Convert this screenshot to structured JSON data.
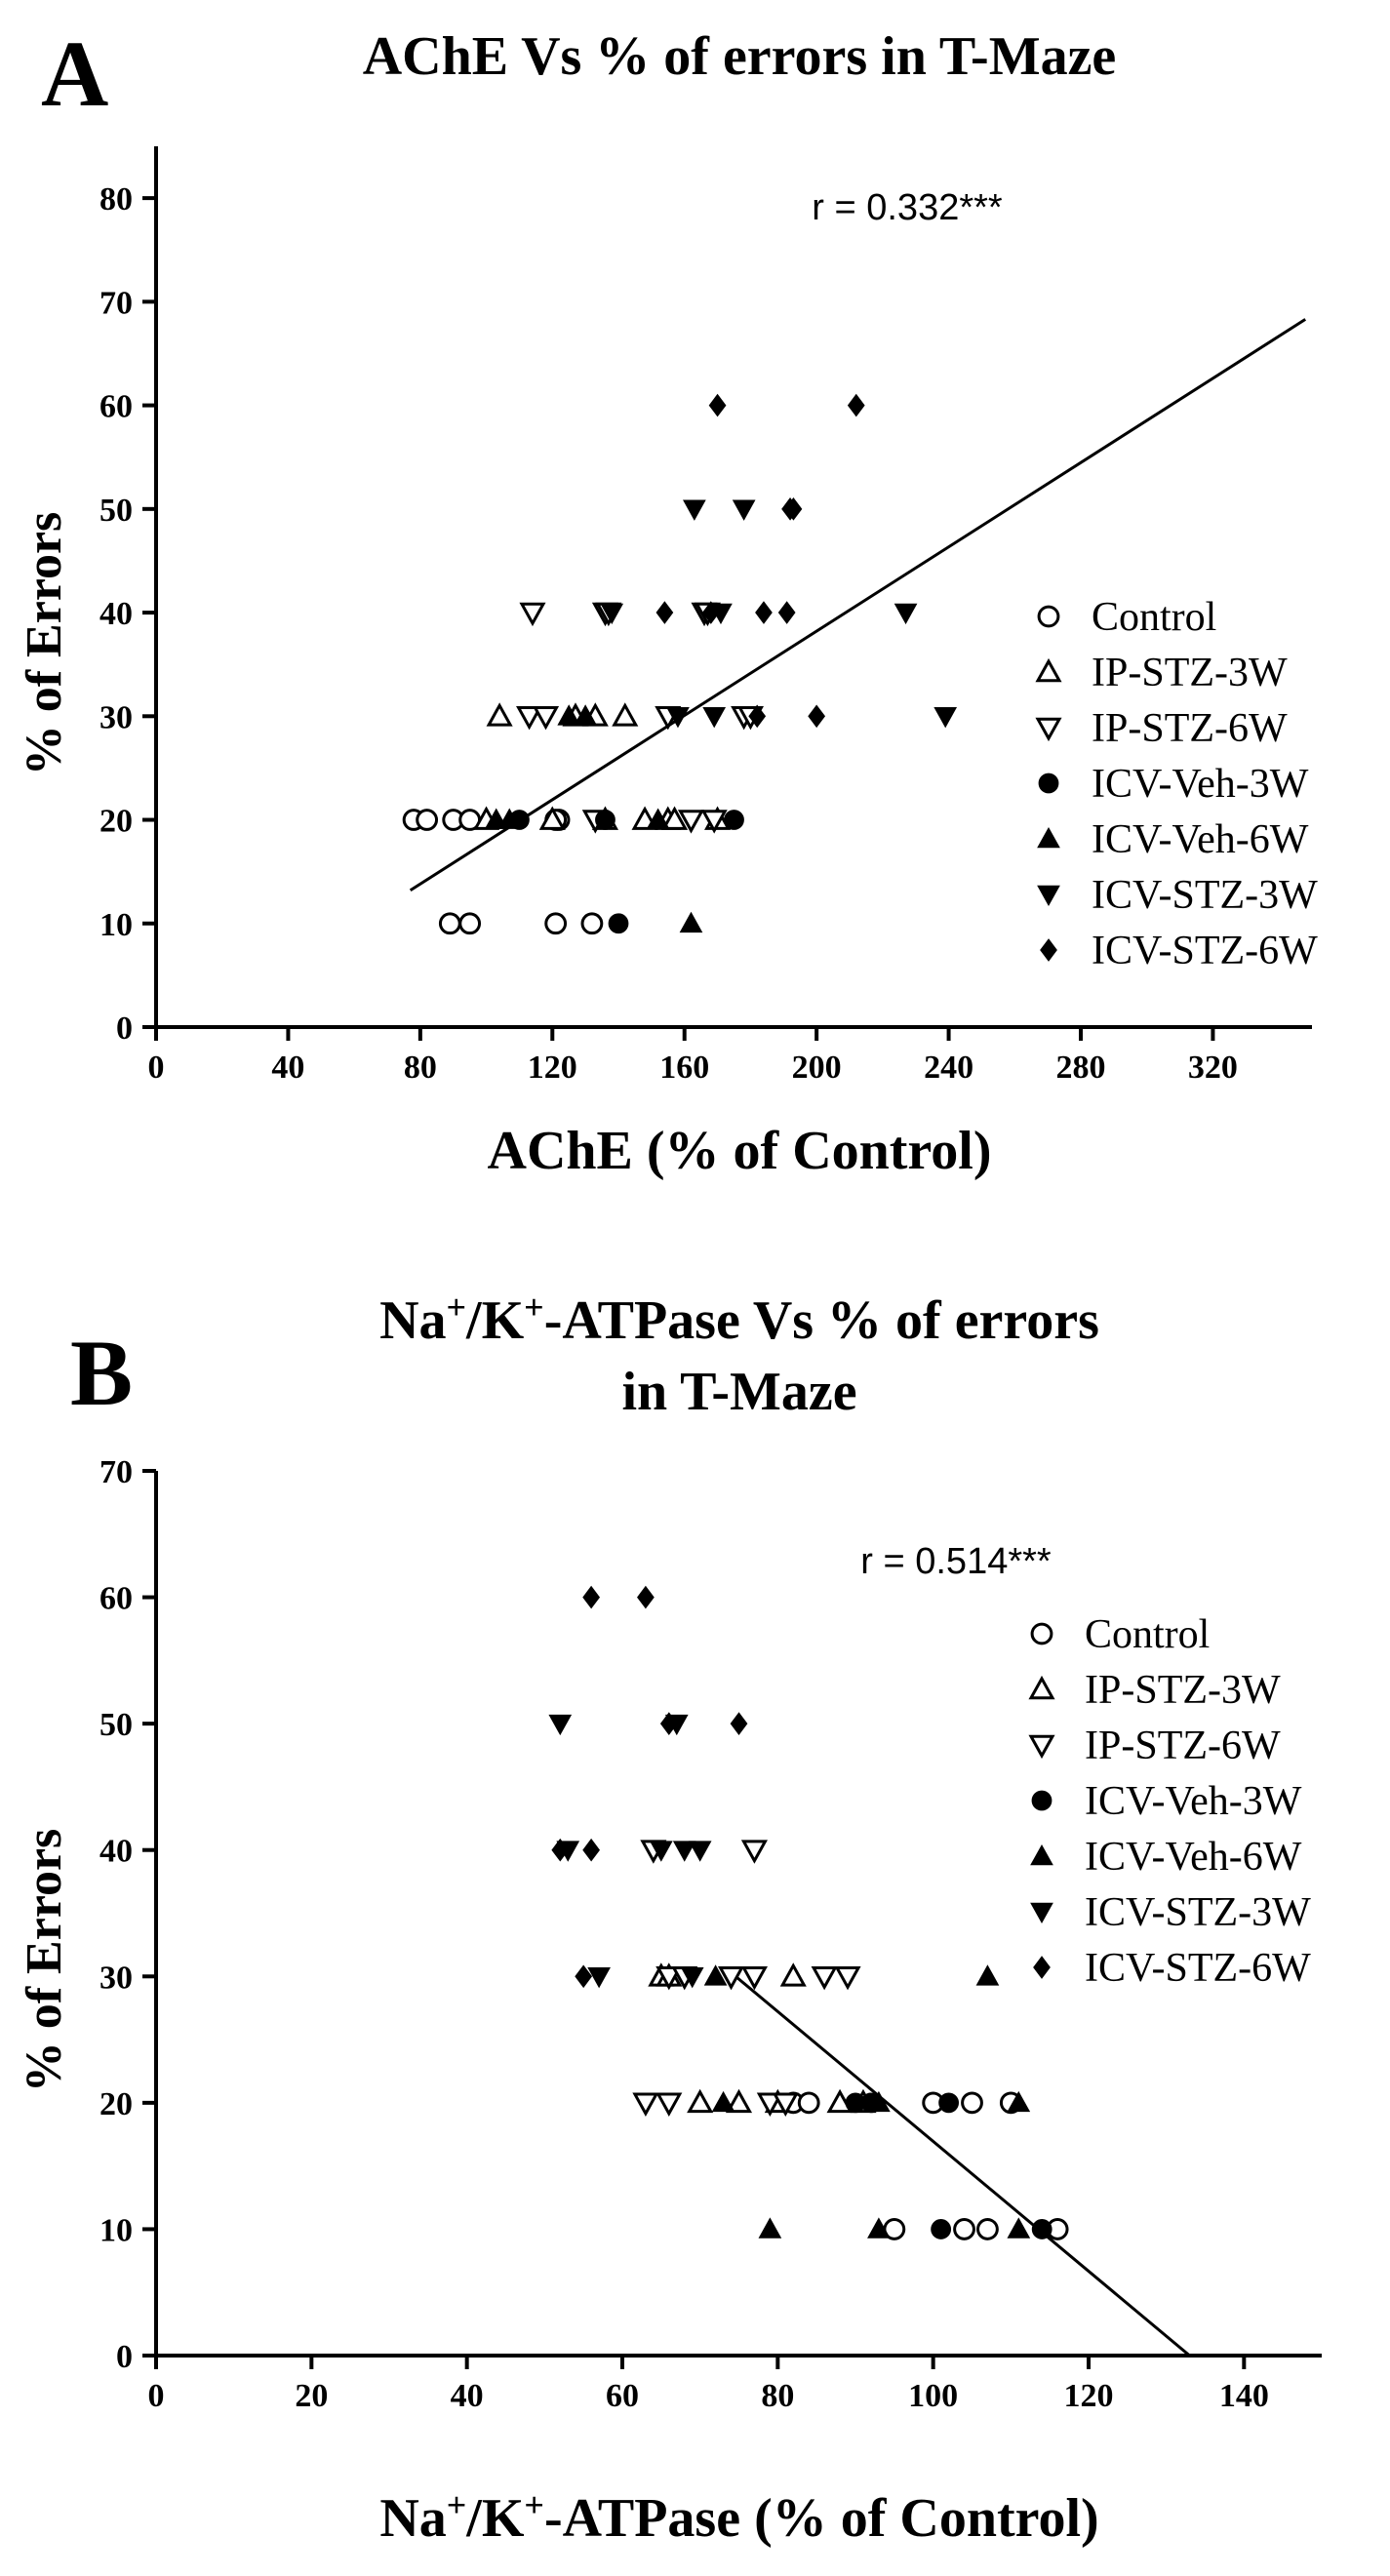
{
  "chart_data": [
    {
      "panel": "A",
      "type": "scatter",
      "title": "AChE Vs % of errors in T-Maze",
      "xlabel": "AChE (% of Control)",
      "ylabel": "% of Errors",
      "xlim": [
        0,
        350
      ],
      "ylim": [
        0,
        85
      ],
      "xticks": [
        0,
        40,
        80,
        120,
        160,
        200,
        240,
        280,
        320
      ],
      "yticks": [
        0,
        10,
        20,
        30,
        40,
        50,
        60,
        70,
        80
      ],
      "annotation": "r = 0.332***",
      "trendline": [
        [
          77,
          13.2
        ],
        [
          348,
          68.3
        ]
      ],
      "legend_position": "right",
      "series": [
        {
          "name": "Control",
          "marker": "open-circle",
          "points": [
            [
              78,
              20
            ],
            [
              82,
              20
            ],
            [
              90,
              20
            ],
            [
              95,
              20
            ],
            [
              122,
              20
            ],
            [
              121,
              20
            ],
            [
              89,
              10
            ],
            [
              95,
              10
            ],
            [
              121,
              10
            ],
            [
              132,
              10
            ]
          ]
        },
        {
          "name": "IP-STZ-3W",
          "marker": "open-triangle-up",
          "points": [
            [
              104,
              30
            ],
            [
              127,
              30
            ],
            [
              133,
              30
            ],
            [
              142,
              30
            ],
            [
              100,
              20
            ],
            [
              120,
              20
            ],
            [
              136,
              20
            ],
            [
              148,
              20
            ],
            [
              155,
              20
            ],
            [
              157,
              20
            ],
            [
              170,
              20
            ]
          ]
        },
        {
          "name": "IP-STZ-6W",
          "marker": "open-triangle-down",
          "points": [
            [
              114,
              40
            ],
            [
              136,
              40
            ],
            [
              137,
              40
            ],
            [
              166,
              40
            ],
            [
              167,
              40
            ],
            [
              113,
              30
            ],
            [
              118,
              30
            ],
            [
              155,
              30
            ],
            [
              178,
              30
            ],
            [
              180,
              30
            ],
            [
              133,
              20
            ],
            [
              162,
              20
            ],
            [
              169,
              20
            ]
          ]
        },
        {
          "name": "ICV-Veh-3W",
          "marker": "filled-circle",
          "points": [
            [
              110,
              20
            ],
            [
              136,
              20
            ],
            [
              175,
              20
            ],
            [
              140,
              10
            ]
          ]
        },
        {
          "name": "ICV-Veh-6W",
          "marker": "filled-triangle-up",
          "points": [
            [
              125,
              30
            ],
            [
              130,
              30
            ],
            [
              103,
              20
            ],
            [
              107,
              20
            ],
            [
              152,
              20
            ],
            [
              162,
              10
            ]
          ]
        },
        {
          "name": "ICV-STZ-3W",
          "marker": "filled-triangle-down",
          "points": [
            [
              163,
              50
            ],
            [
              178,
              50
            ],
            [
              138,
              40
            ],
            [
              171,
              40
            ],
            [
              227,
              40
            ],
            [
              158,
              30
            ],
            [
              169,
              30
            ],
            [
              239,
              30
            ]
          ]
        },
        {
          "name": "ICV-STZ-6W",
          "marker": "filled-diamond",
          "points": [
            [
              170,
              60
            ],
            [
              212,
              60
            ],
            [
              192,
              50
            ],
            [
              193,
              50
            ],
            [
              154,
              40
            ],
            [
              168,
              40
            ],
            [
              184,
              40
            ],
            [
              191,
              40
            ],
            [
              182,
              30
            ],
            [
              200,
              30
            ]
          ]
        }
      ]
    },
    {
      "panel": "B",
      "type": "scatter",
      "title_lines": [
        "Na+/K+-ATPase Vs % of errors",
        "in T-Maze"
      ],
      "title_parts": {
        "na": "Na",
        "sup_plus": "+",
        "slash_k": "/K",
        "rest": "-ATPase Vs % of errors"
      },
      "xlabel_parts": {
        "na": "Na",
        "sup_plus": "+",
        "slash_k": "/K",
        "rest": "-ATPase (% of Control)"
      },
      "ylabel": "% of Errors",
      "xlim": [
        0,
        150
      ],
      "ylim": [
        0,
        70
      ],
      "xticks": [
        0,
        20,
        40,
        60,
        80,
        100,
        120,
        140
      ],
      "yticks": [
        0,
        10,
        20,
        30,
        40,
        50,
        60,
        70
      ],
      "annotation": "r = 0.514***",
      "trendline": [
        [
          74,
          30.3
        ],
        [
          133,
          0
        ]
      ],
      "legend_position": "right",
      "series": [
        {
          "name": "Control",
          "marker": "open-circle",
          "points": [
            [
              82,
              20
            ],
            [
              84,
              20
            ],
            [
              100,
              20
            ],
            [
              105,
              20
            ],
            [
              110,
              20
            ],
            [
              95,
              10
            ],
            [
              104,
              10
            ],
            [
              107,
              10
            ],
            [
              116,
              10
            ]
          ]
        },
        {
          "name": "IP-STZ-3W",
          "marker": "open-triangle-up",
          "points": [
            [
              65,
              30
            ],
            [
              66,
              30
            ],
            [
              82,
              30
            ],
            [
              70,
              20
            ],
            [
              75,
              20
            ],
            [
              80,
              20
            ],
            [
              88,
              20
            ],
            [
              91,
              20
            ]
          ]
        },
        {
          "name": "IP-STZ-6W",
          "marker": "open-triangle-down",
          "points": [
            [
              64,
              40
            ],
            [
              77,
              40
            ],
            [
              66,
              30
            ],
            [
              68,
              30
            ],
            [
              74,
              30
            ],
            [
              77,
              30
            ],
            [
              86,
              30
            ],
            [
              89,
              30
            ],
            [
              63,
              20
            ],
            [
              66,
              20
            ],
            [
              79,
              20
            ],
            [
              81,
              20
            ]
          ]
        },
        {
          "name": "ICV-Veh-3W",
          "marker": "filled-circle",
          "points": [
            [
              90,
              20
            ],
            [
              92,
              20
            ],
            [
              102,
              20
            ],
            [
              101,
              10
            ],
            [
              114,
              10
            ]
          ]
        },
        {
          "name": "ICV-Veh-6W",
          "marker": "filled-triangle-up",
          "points": [
            [
              72,
              30
            ],
            [
              107,
              30
            ],
            [
              73,
              20
            ],
            [
              93,
              20
            ],
            [
              111,
              20
            ],
            [
              79,
              10
            ],
            [
              93,
              10
            ],
            [
              111,
              10
            ]
          ]
        },
        {
          "name": "ICV-STZ-3W",
          "marker": "filled-triangle-down",
          "points": [
            [
              52,
              50
            ],
            [
              67,
              50
            ],
            [
              53,
              40
            ],
            [
              65,
              40
            ],
            [
              68,
              40
            ],
            [
              70,
              40
            ],
            [
              57,
              30
            ],
            [
              69,
              30
            ]
          ]
        },
        {
          "name": "ICV-STZ-6W",
          "marker": "filled-diamond",
          "points": [
            [
              56,
              60
            ],
            [
              63,
              60
            ],
            [
              66,
              50
            ],
            [
              75,
              50
            ],
            [
              52,
              40
            ],
            [
              56,
              40
            ],
            [
              55,
              30
            ]
          ]
        }
      ]
    }
  ]
}
